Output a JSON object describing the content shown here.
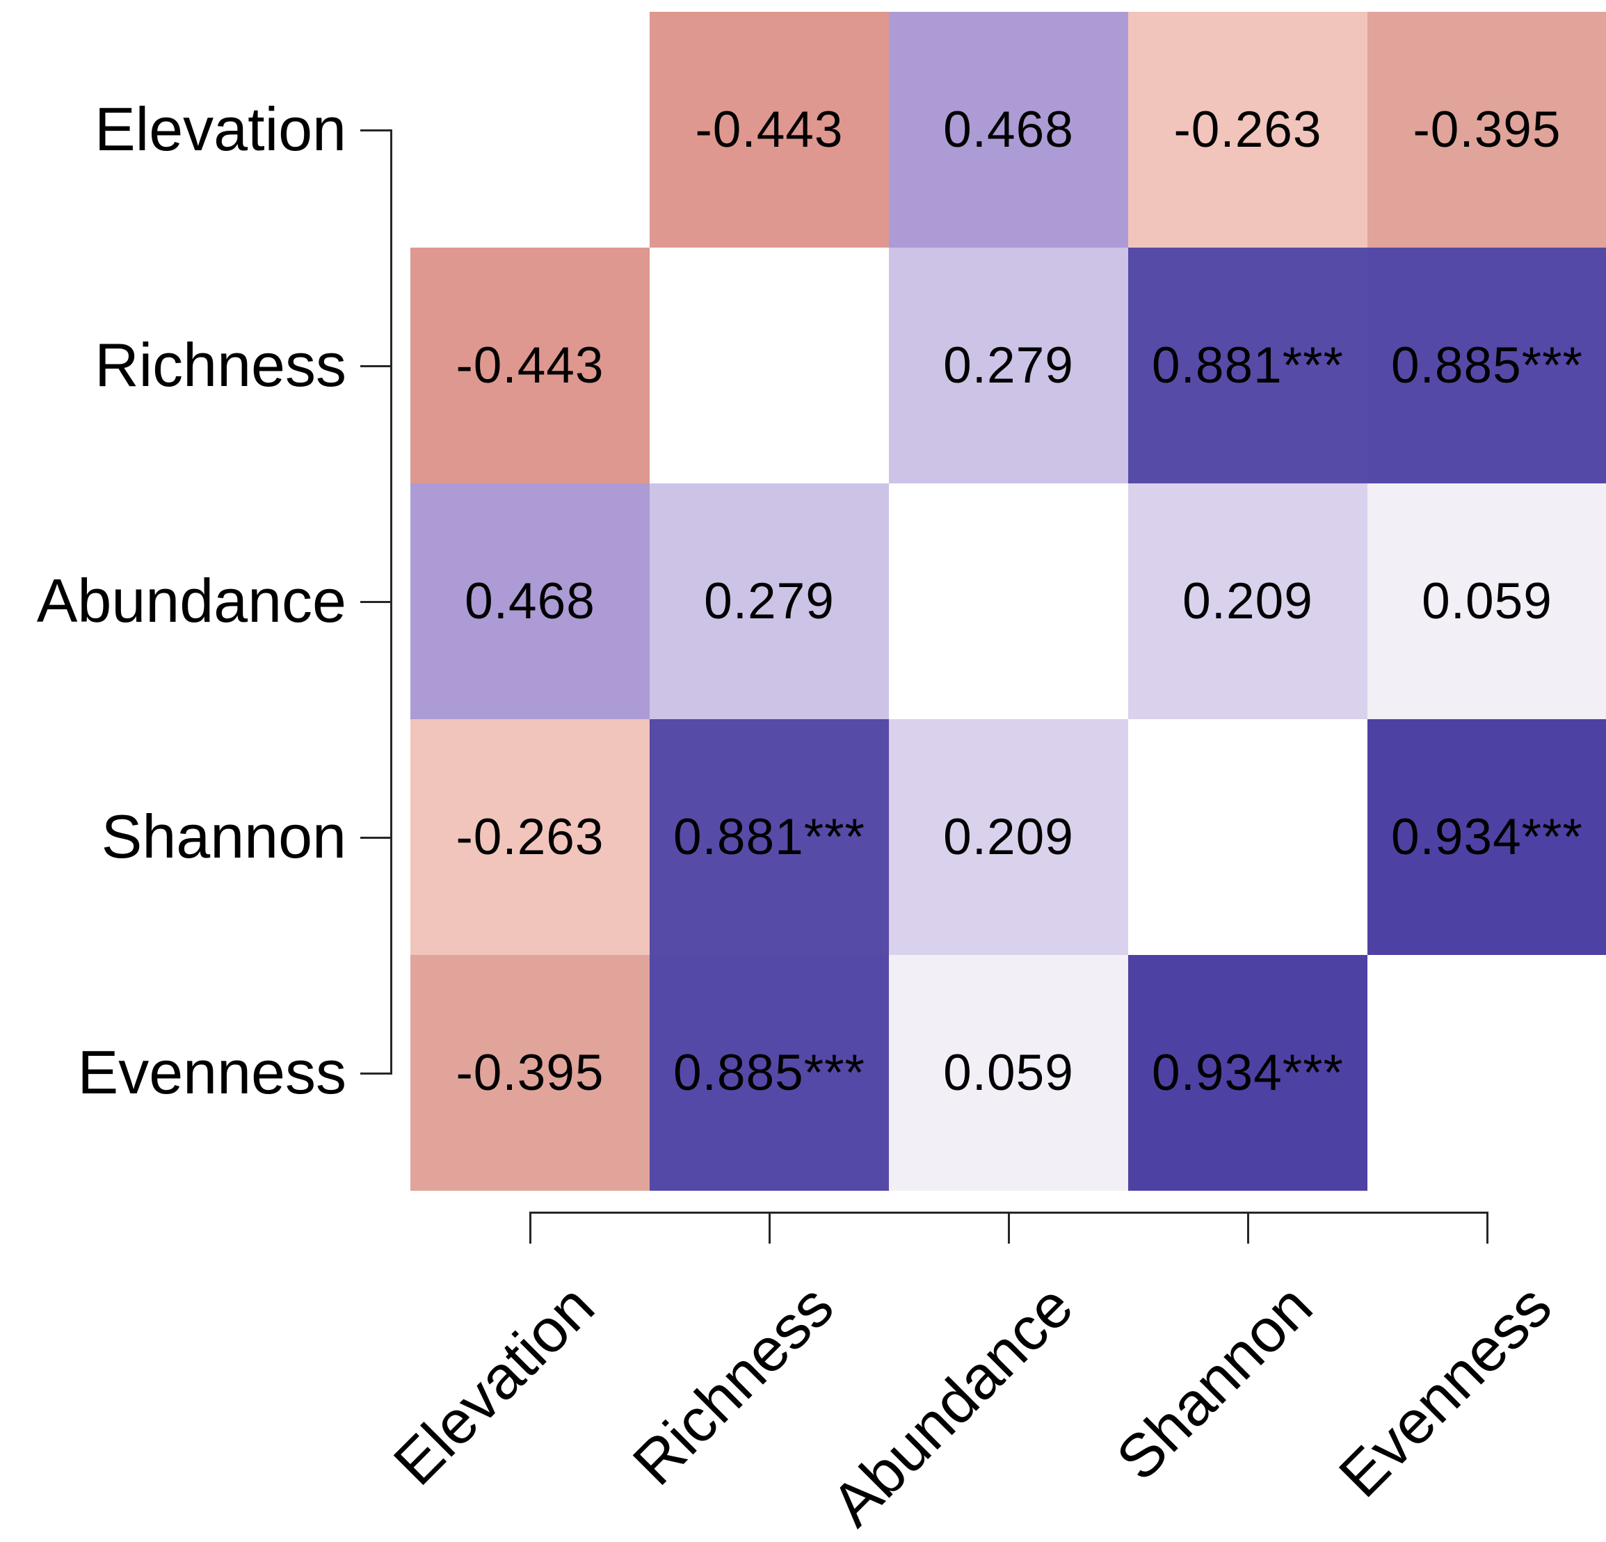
{
  "chart_data": {
    "type": "heatmap",
    "subtype": "correlation-matrix",
    "title": "",
    "xlabel": "",
    "ylabel": "",
    "variables": [
      "Elevation",
      "Richness",
      "Abundance",
      "Shannon",
      "Evenness"
    ],
    "matrix": [
      [
        null,
        -0.443,
        0.468,
        -0.263,
        -0.395
      ],
      [
        -0.443,
        null,
        0.279,
        0.881,
        0.885
      ],
      [
        0.468,
        0.279,
        null,
        0.209,
        0.059
      ],
      [
        -0.263,
        0.881,
        0.209,
        null,
        0.934
      ],
      [
        -0.395,
        0.885,
        0.059,
        0.934,
        null
      ]
    ],
    "cell_labels": [
      [
        "",
        "-0.443",
        "0.468",
        "-0.263",
        "-0.395"
      ],
      [
        "-0.443",
        "",
        "0.279",
        "0.881***",
        "0.885***"
      ],
      [
        "0.468",
        "0.279",
        "",
        "0.209",
        "0.059"
      ],
      [
        "-0.263",
        "0.881***",
        "0.209",
        "",
        "0.934***"
      ],
      [
        "-0.395",
        "0.885***",
        "0.059",
        "0.934***",
        ""
      ]
    ],
    "cell_colors": [
      [
        "#FFFFFF",
        "#DE988F",
        "#AC9BD4",
        "#F1C5BC",
        "#E0A49B"
      ],
      [
        "#DE988F",
        "#FFFFFF",
        "#CDC3E6",
        "#574BA8",
        "#5549A7"
      ],
      [
        "#AC9BD4",
        "#CDC3E6",
        "#FFFFFF",
        "#DAD2EC",
        "#F2EFF6"
      ],
      [
        "#F1C5BC",
        "#574BA8",
        "#DAD2EC",
        "#FFFFFF",
        "#4D42A3"
      ],
      [
        "#E0A49B",
        "#5549A7",
        "#F2EFF6",
        "#4D42A3",
        "#FFFFFF"
      ]
    ],
    "significance_marker": "***",
    "diagonal_blank": true,
    "grid_on": false,
    "legend": "none",
    "palette": {
      "negative_strong": "#DE988F",
      "negative_weak": "#F1C5BC",
      "positive_strong": "#4D42A3",
      "positive_weak": "#F2EFF6",
      "blank": "#FFFFFF"
    },
    "axis_color": "#262626",
    "text_color": "#000000",
    "background_color": "#FFFFFF"
  }
}
